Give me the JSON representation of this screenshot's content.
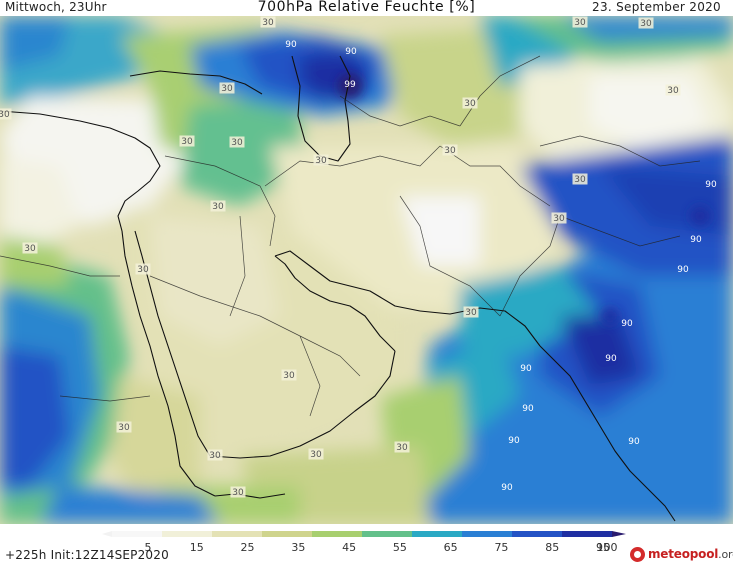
{
  "header": {
    "left": "Mittwoch, 23Uhr",
    "title": "700hPa Relative Feuchte [%]",
    "right": "23. September 2020"
  },
  "footer": {
    "run_info": "+225h Init:12Z14SEP2020",
    "logo_brand": "meteopool",
    "logo_tld": ".org"
  },
  "legend": {
    "ticks": [
      "5",
      "15",
      "25",
      "35",
      "45",
      "55",
      "65",
      "75",
      "85",
      "95",
      "100"
    ],
    "colors": [
      "#f7f7f7",
      "#f1f0d9",
      "#e4e2b5",
      "#cfd48d",
      "#a8cf6f",
      "#63c08a",
      "#2aa9c4",
      "#2a7fd4",
      "#2453c5",
      "#1f2fa2",
      "#2a1b6e"
    ]
  },
  "contour_labels": [
    {
      "text": "90"
    },
    {
      "text": "90"
    },
    {
      "text": "99"
    },
    {
      "text": "30"
    },
    {
      "text": "30"
    },
    {
      "text": "30"
    },
    {
      "text": "30"
    },
    {
      "text": "30"
    },
    {
      "text": "30"
    },
    {
      "text": "30"
    },
    {
      "text": "30"
    },
    {
      "text": "30"
    },
    {
      "text": "30"
    },
    {
      "text": "30"
    },
    {
      "text": "30"
    },
    {
      "text": "30"
    },
    {
      "text": "30"
    },
    {
      "text": "30"
    },
    {
      "text": "30"
    },
    {
      "text": "30"
    },
    {
      "text": "30"
    },
    {
      "text": "30"
    },
    {
      "text": "30"
    },
    {
      "text": "30"
    },
    {
      "text": "30"
    },
    {
      "text": "30"
    },
    {
      "text": "90"
    },
    {
      "text": "90"
    },
    {
      "text": "90"
    },
    {
      "text": "90"
    },
    {
      "text": "90"
    },
    {
      "text": "90"
    },
    {
      "text": "90"
    },
    {
      "text": "90"
    },
    {
      "text": "90"
    },
    {
      "text": "90"
    }
  ]
}
